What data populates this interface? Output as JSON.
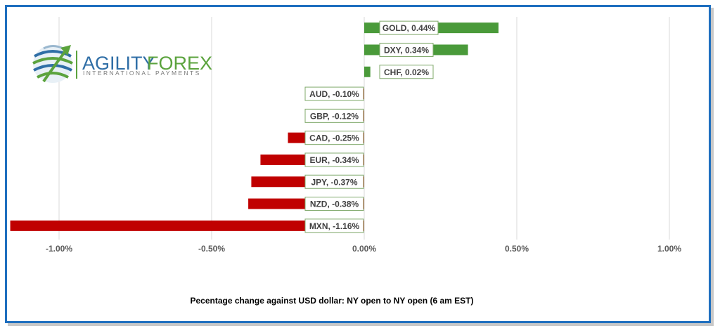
{
  "logo": {
    "word1": "AGILITY",
    "word2": "FOREX",
    "tagline": "INTERNATIONAL PAYMENTS"
  },
  "caption": "Pecentage change against USD dollar: NY open to  NY open  (6 am EST)",
  "colors": {
    "positive": "#4a9a3a",
    "negative": "#c00000",
    "frame": "#1f6fbf",
    "logo_blue": "#2f6ea6",
    "logo_green": "#5ba33d"
  },
  "chart_data": {
    "type": "bar",
    "orientation": "horizontal",
    "categories": [
      "GOLD",
      "DXY",
      "CHF",
      "AUD",
      "GBP",
      "CAD",
      "EUR",
      "JPY",
      "NZD",
      "MXN"
    ],
    "values": [
      0.44,
      0.34,
      0.02,
      -0.1,
      -0.12,
      -0.25,
      -0.34,
      -0.37,
      -0.38,
      -1.16
    ],
    "labels": [
      "GOLD, 0.44%",
      "DXY, 0.34%",
      "CHF, 0.02%",
      "AUD, -0.10%",
      "GBP, -0.12%",
      "CAD, -0.25%",
      "EUR, -0.34%",
      "JPY, -0.37%",
      "NZD, -0.38%",
      "MXN, -1.16%"
    ],
    "xlim": [
      -1.0,
      1.0
    ],
    "xticks": [
      -1.0,
      -0.5,
      0.0,
      0.5,
      1.0
    ],
    "xtick_labels": [
      "-1.00%",
      "-0.50%",
      "0.00%",
      "0.50%",
      "1.00%"
    ],
    "grid": "vertical"
  }
}
